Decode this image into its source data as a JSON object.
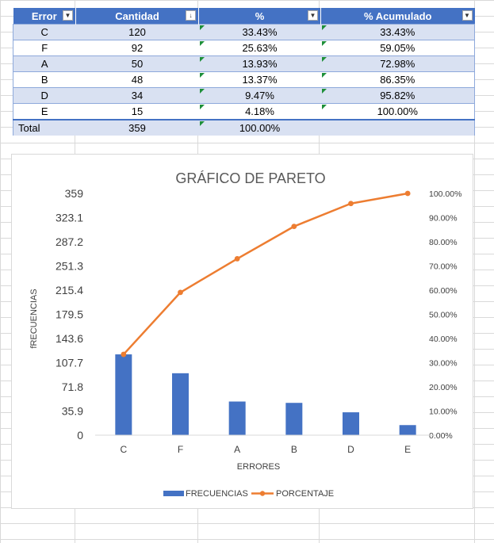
{
  "table": {
    "headers": [
      "Error",
      "Cantidad",
      "%",
      "% Acumulado"
    ],
    "filter_icons": [
      "▼",
      "↓",
      "▼",
      "▼"
    ],
    "rows": [
      {
        "error": "C",
        "cantidad": "120",
        "pct": "33.43%",
        "acum": "33.43%"
      },
      {
        "error": "F",
        "cantidad": "92",
        "pct": "25.63%",
        "acum": "59.05%"
      },
      {
        "error": "A",
        "cantidad": "50",
        "pct": "13.93%",
        "acum": "72.98%"
      },
      {
        "error": "B",
        "cantidad": "48",
        "pct": "13.37%",
        "acum": "86.35%"
      },
      {
        "error": "D",
        "cantidad": "34",
        "pct": "9.47%",
        "acum": "95.82%"
      },
      {
        "error": "E",
        "cantidad": "15",
        "pct": "4.18%",
        "acum": "100.00%"
      }
    ],
    "total": {
      "label": "Total",
      "cantidad": "359",
      "pct": "100.00%"
    }
  },
  "chart_data": {
    "type": "bar",
    "title": "GRÁFICO DE PARETO",
    "xlabel": "ERRORES",
    "ylabel": "fRECUENCIAS",
    "categories": [
      "C",
      "F",
      "A",
      "B",
      "D",
      "E"
    ],
    "ylim": [
      0,
      359
    ],
    "y2lim": [
      0,
      1
    ],
    "y_ticks": [
      "0",
      "35.9",
      "71.8",
      "107.7",
      "143.6",
      "179.5",
      "215.4",
      "251.3",
      "287.2",
      "323.1",
      "359"
    ],
    "y2_ticks": [
      "0.00%",
      "10.00%",
      "20.00%",
      "30.00%",
      "40.00%",
      "50.00%",
      "60.00%",
      "70.00%",
      "80.00%",
      "90.00%",
      "100.00%"
    ],
    "series": [
      {
        "name": "FRECUENCIAS",
        "type": "bar",
        "axis": "left",
        "color": "#4472c4",
        "values": [
          120,
          92,
          50,
          48,
          34,
          15
        ]
      },
      {
        "name": "PORCENTAJE",
        "type": "line",
        "axis": "right",
        "color": "#ed7d31",
        "values": [
          0.3343,
          0.5905,
          0.7298,
          0.8635,
          0.9582,
          1.0
        ]
      }
    ],
    "legend": "bottom",
    "grid": false
  }
}
